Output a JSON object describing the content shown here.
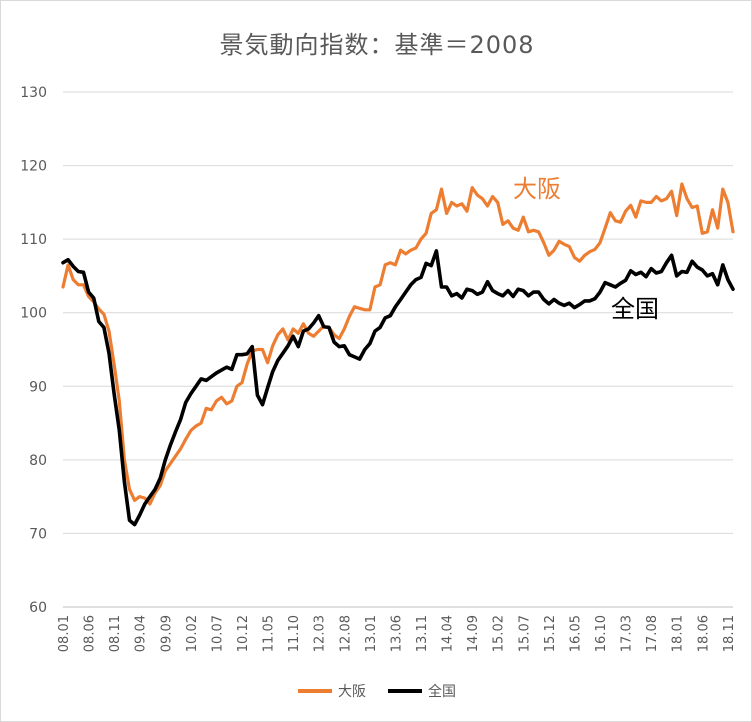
{
  "chart_data": {
    "type": "line",
    "title": "景気動向指数：基準＝2008",
    "ylim": [
      60,
      130
    ],
    "y_ticks": [
      60,
      70,
      80,
      90,
      100,
      110,
      120,
      130
    ],
    "x_tick_labels": [
      "08.01",
      "08.06",
      "08.11",
      "09.04",
      "09.09",
      "10.02",
      "10.07",
      "10.12",
      "11.05",
      "11.10",
      "12.03",
      "12.08",
      "13.01",
      "13.06",
      "13.11",
      "14.04",
      "14.09",
      "15.02",
      "15.07",
      "15.12",
      "16.05",
      "16.10",
      "17.03",
      "17.08",
      "18.01",
      "18.06",
      "18.11"
    ],
    "x_tick_indices": [
      0,
      5,
      10,
      15,
      20,
      25,
      30,
      35,
      40,
      45,
      50,
      55,
      60,
      65,
      70,
      75,
      80,
      85,
      90,
      95,
      100,
      105,
      110,
      115,
      120,
      125,
      130
    ],
    "grid": true,
    "legend_position": "bottom",
    "series": [
      {
        "name": "大阪",
        "color": "#ed7d31",
        "label": "大阪",
        "values": [
          103.5,
          106.5,
          104.5,
          103.8,
          103.8,
          102.2,
          101.5,
          100.5,
          99.8,
          97.5,
          93.0,
          88.0,
          80.0,
          76.0,
          74.5,
          75.0,
          74.8,
          74.0,
          75.5,
          76.5,
          78.5,
          79.5,
          80.5,
          81.5,
          82.8,
          84.0,
          84.6,
          85.0,
          87.0,
          86.8,
          88.0,
          88.5,
          87.6,
          88.0,
          90.0,
          90.5,
          93.0,
          94.8,
          95.0,
          95.0,
          93.2,
          95.5,
          97.0,
          97.8,
          96.3,
          97.8,
          97.2,
          98.5,
          97.2,
          96.8,
          97.5,
          98.2,
          98.0,
          97.0,
          96.5,
          97.8,
          99.5,
          100.8,
          100.6,
          100.4,
          100.4,
          103.5,
          103.8,
          106.5,
          106.8,
          106.5,
          108.5,
          108.0,
          108.5,
          108.8,
          110.0,
          110.8,
          113.5,
          114.0,
          116.8,
          113.5,
          115.0,
          114.5,
          114.8,
          113.8,
          117.0,
          116.0,
          115.5,
          114.5,
          115.8,
          115.0,
          112.0,
          112.5,
          111.5,
          111.2,
          113.0,
          111.0,
          111.2,
          111.0,
          109.5,
          107.8,
          108.5,
          109.7,
          109.3,
          109.0,
          107.5,
          107.0,
          107.8,
          108.3,
          108.6,
          109.5,
          111.5,
          113.6,
          112.5,
          112.3,
          113.8,
          114.6,
          113.0,
          115.2,
          115.0,
          115.0,
          115.8,
          115.2,
          115.5,
          116.5,
          113.2,
          117.5,
          115.5,
          114.3,
          114.5,
          110.8,
          111.0,
          114.0,
          111.5,
          116.8,
          115.0,
          111.0
        ]
      },
      {
        "name": "全国",
        "color": "#000000",
        "label": "全国",
        "values": [
          106.8,
          107.2,
          106.3,
          105.6,
          105.5,
          102.8,
          102.0,
          98.8,
          98.0,
          94.5,
          89.0,
          84.0,
          77.0,
          71.8,
          71.2,
          72.5,
          74.0,
          75.0,
          76.0,
          77.5,
          80.0,
          82.0,
          83.8,
          85.5,
          87.8,
          89.0,
          90.0,
          91.0,
          90.8,
          91.3,
          91.8,
          92.2,
          92.6,
          92.3,
          94.3,
          94.3,
          94.4,
          95.4,
          88.8,
          87.5,
          89.8,
          92.0,
          93.5,
          94.5,
          95.5,
          96.8,
          95.4,
          97.5,
          97.8,
          98.6,
          99.6,
          98.1,
          98.0,
          96.0,
          95.4,
          95.5,
          94.3,
          94.0,
          93.7,
          95.0,
          95.8,
          97.5,
          98.0,
          99.3,
          99.6,
          100.8,
          101.8,
          102.8,
          103.8,
          104.5,
          104.8,
          106.7,
          106.4,
          108.4,
          103.5,
          103.5,
          102.3,
          102.6,
          102.0,
          103.2,
          103.0,
          102.5,
          102.8,
          104.2,
          103.0,
          102.6,
          102.3,
          103.0,
          102.2,
          103.2,
          103.0,
          102.3,
          102.8,
          102.8,
          101.8,
          101.2,
          101.8,
          101.3,
          101.0,
          101.3,
          100.7,
          101.1,
          101.6,
          101.6,
          101.9,
          102.8,
          104.1,
          103.8,
          103.5,
          104.0,
          104.4,
          105.7,
          105.2,
          105.5,
          104.9,
          106.0,
          105.4,
          105.6,
          106.8,
          107.8,
          105.0,
          105.6,
          105.5,
          107.0,
          106.2,
          105.8,
          105.0,
          105.3,
          103.8,
          106.5,
          104.5,
          103.2
        ]
      }
    ]
  }
}
